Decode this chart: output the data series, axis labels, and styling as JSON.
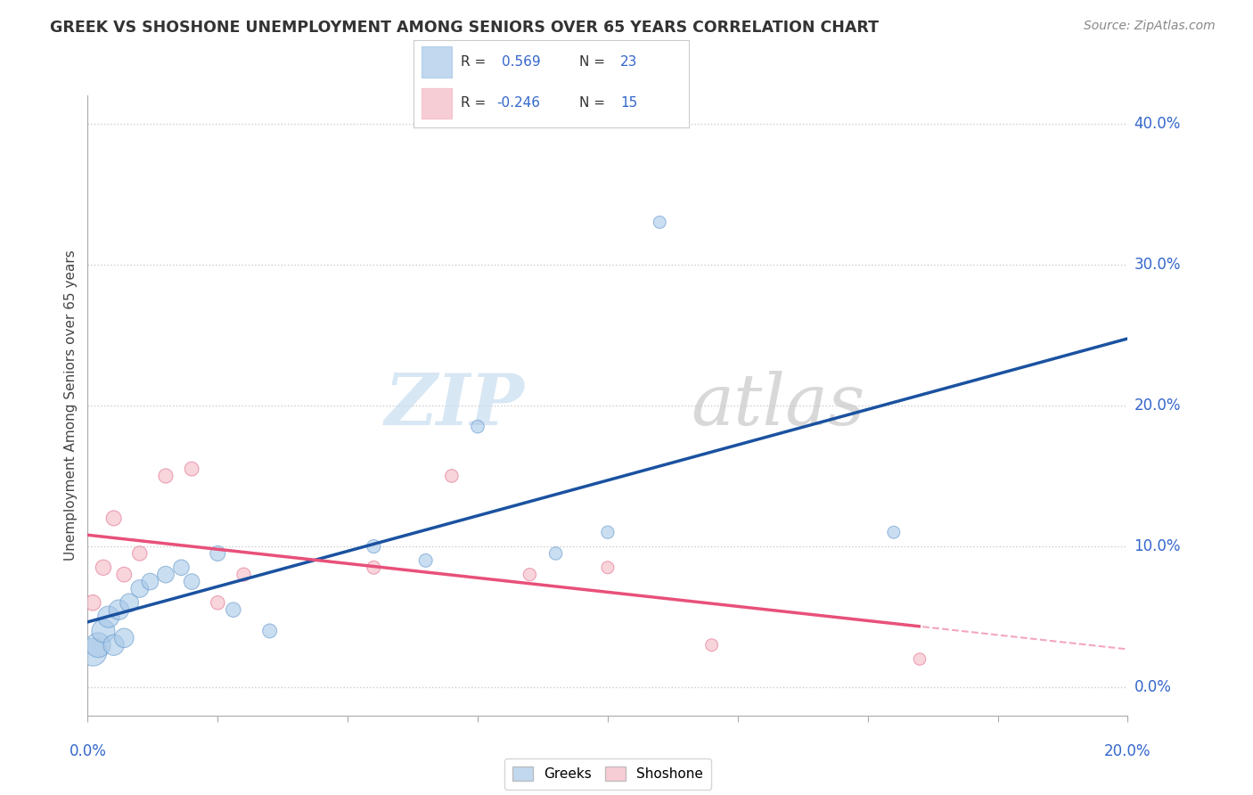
{
  "title": "GREEK VS SHOSHONE UNEMPLOYMENT AMONG SENIORS OVER 65 YEARS CORRELATION CHART",
  "source": "Source: ZipAtlas.com",
  "ylabel": "Unemployment Among Seniors over 65 years",
  "xlim": [
    0.0,
    0.2
  ],
  "ylim": [
    -0.02,
    0.42
  ],
  "yticks": [
    0.0,
    0.1,
    0.2,
    0.3,
    0.4
  ],
  "greek_color": "#a8c8e8",
  "greek_edge_color": "#6699cc",
  "shoshone_color": "#f4b8c4",
  "shoshone_edge_color": "#e07090",
  "greek_line_color": "#1a52a0",
  "shoshone_line_color": "#e8507a",
  "greek_R": 0.569,
  "greek_N": 23,
  "shoshone_R": -0.246,
  "shoshone_N": 15,
  "greeks_x": [
    0.001,
    0.002,
    0.003,
    0.004,
    0.005,
    0.006,
    0.007,
    0.008,
    0.01,
    0.012,
    0.015,
    0.018,
    0.02,
    0.025,
    0.028,
    0.035,
    0.055,
    0.065,
    0.075,
    0.09,
    0.1,
    0.11,
    0.155
  ],
  "greeks_y": [
    0.025,
    0.03,
    0.04,
    0.05,
    0.03,
    0.055,
    0.035,
    0.06,
    0.07,
    0.075,
    0.08,
    0.085,
    0.075,
    0.095,
    0.055,
    0.04,
    0.1,
    0.09,
    0.185,
    0.095,
    0.11,
    0.33,
    0.11
  ],
  "greeks_size": [
    500,
    400,
    350,
    300,
    280,
    260,
    240,
    220,
    200,
    180,
    180,
    160,
    160,
    150,
    140,
    130,
    120,
    115,
    110,
    108,
    105,
    100,
    100
  ],
  "shoshone_x": [
    0.001,
    0.003,
    0.005,
    0.007,
    0.01,
    0.015,
    0.02,
    0.025,
    0.03,
    0.055,
    0.07,
    0.085,
    0.1,
    0.12,
    0.16
  ],
  "shoshone_y": [
    0.06,
    0.085,
    0.12,
    0.08,
    0.095,
    0.15,
    0.155,
    0.06,
    0.08,
    0.085,
    0.15,
    0.08,
    0.085,
    0.03,
    0.02
  ],
  "shoshone_size": [
    160,
    155,
    150,
    145,
    140,
    135,
    130,
    125,
    120,
    115,
    110,
    105,
    100,
    100,
    95
  ],
  "watermark_zip": "ZIP",
  "watermark_atlas": "atlas",
  "background_color": "#ffffff",
  "grid_color": "#cccccc",
  "legend_R_color": "#333333",
  "legend_val_color": "#3366cc",
  "legend_greek_fill": "#a8c8e8",
  "legend_shoshone_fill": "#f4b8c4"
}
